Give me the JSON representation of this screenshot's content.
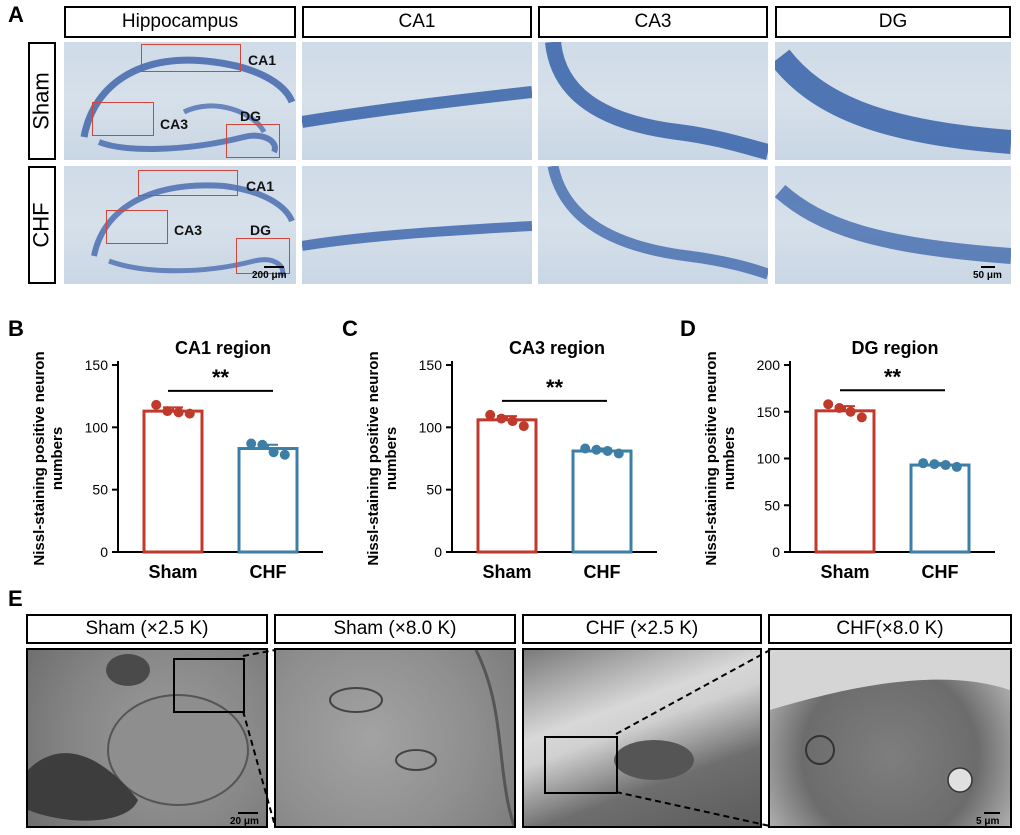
{
  "panels": {
    "A": "A",
    "B": "B",
    "C": "C",
    "D": "D",
    "E": "E"
  },
  "sectionA": {
    "columns": [
      "Hippocampus",
      "CA1",
      "CA3",
      "DG"
    ],
    "rows": [
      "Sham",
      "CHF"
    ],
    "regionTags": {
      "ca1": "CA1",
      "ca3": "CA3",
      "dg": "DG"
    },
    "scaleLow": "200 μm",
    "scaleHigh": "50 μm"
  },
  "colors": {
    "sham": "#c0392b",
    "chf": "#3d7ea6",
    "dotSham": "#c0392b",
    "dotChf": "#3d7ea6",
    "roi": "#d2453a"
  },
  "chart_data": [
    {
      "type": "bar",
      "id": "B",
      "title": "CA1 region",
      "categories": [
        "Sham",
        "CHF"
      ],
      "values": [
        113,
        83
      ],
      "errors": [
        3,
        3
      ],
      "points": [
        [
          118,
          113,
          112,
          111
        ],
        [
          87,
          86,
          80,
          78
        ]
      ],
      "ylabel": "Nissl-staining positive neuron numbers",
      "ylim": [
        0,
        150
      ],
      "yticks": [
        0,
        50,
        100,
        150
      ],
      "significance": "**"
    },
    {
      "type": "bar",
      "id": "C",
      "title": "CA3 region",
      "categories": [
        "Sham",
        "CHF"
      ],
      "values": [
        106,
        81
      ],
      "errors": [
        3,
        2
      ],
      "points": [
        [
          110,
          107,
          105,
          101
        ],
        [
          83,
          82,
          81,
          79
        ]
      ],
      "ylabel": "Nissl-staining positive neuron numbers",
      "ylim": [
        0,
        150
      ],
      "yticks": [
        0,
        50,
        100,
        150
      ],
      "significance": "**"
    },
    {
      "type": "bar",
      "id": "D",
      "title": "DG region",
      "categories": [
        "Sham",
        "CHF"
      ],
      "values": [
        151,
        93
      ],
      "errors": [
        5,
        2
      ],
      "points": [
        [
          158,
          154,
          150,
          144
        ],
        [
          95,
          94,
          93,
          91
        ]
      ],
      "ylabel": "Nissl-staining positive neuron numbers",
      "ylim": [
        0,
        200
      ],
      "yticks": [
        0,
        50,
        100,
        150,
        200
      ],
      "significance": "**"
    }
  ],
  "sectionE": {
    "headers": [
      "Sham (×2.5 K)",
      "Sham (×8.0 K)",
      "CHF (×2.5 K)",
      "CHF(×8.0 K)"
    ],
    "scaleLow": "20 μm",
    "scaleHigh": "5 μm"
  }
}
